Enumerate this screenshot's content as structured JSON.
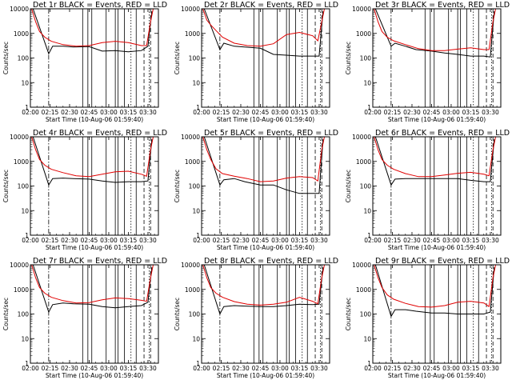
{
  "colors": {
    "events": "#000000",
    "lld": "#e00000",
    "background": "#ffffff"
  },
  "common": {
    "xlabel": "Start Time (10-Aug-06 01:59:40)",
    "ylabel": "Counts/sec",
    "xticks": [
      "02:00",
      "02:15",
      "02:30",
      "02:45",
      "03:00",
      "03:15",
      "03:30"
    ],
    "yticks": [
      "1",
      "10",
      "100",
      "1000",
      "10000"
    ]
  },
  "chart_data": [
    {
      "type": "line",
      "title": "Det 1r BLACK = Events, RED = LLD",
      "xlim": [
        "02:00",
        "03:38"
      ],
      "ylim": [
        1,
        10000
      ],
      "yscale": "log",
      "series": [
        {
          "name": "Events",
          "color": "#000000",
          "x": [
            "02:02",
            "02:14",
            "02:17",
            "02:25",
            "02:33",
            "02:45",
            "02:55",
            "03:05",
            "03:15",
            "03:25",
            "03:30",
            "03:33"
          ],
          "y": [
            10000,
            150,
            300,
            300,
            280,
            290,
            190,
            200,
            180,
            200,
            300,
            8000
          ]
        },
        {
          "name": "LLD",
          "color": "#e00000",
          "x": [
            "02:01",
            "02:04",
            "02:07",
            "02:11",
            "02:16",
            "02:25",
            "02:35",
            "02:45",
            "02:55",
            "03:05",
            "03:15",
            "03:25",
            "03:29",
            "03:32",
            "03:34"
          ],
          "y": [
            10000,
            3000,
            1200,
            700,
            480,
            350,
            300,
            320,
            420,
            480,
            420,
            320,
            320,
            3000,
            10000
          ]
        }
      ]
    },
    {
      "type": "line",
      "title": "Det 2r BLACK = Events, RED = LLD",
      "xlim": [
        "02:00",
        "03:38"
      ],
      "ylim": [
        1,
        10000
      ],
      "yscale": "log",
      "series": [
        {
          "name": "Events",
          "color": "#000000",
          "x": [
            "02:02",
            "02:14",
            "02:17",
            "02:25",
            "02:33",
            "02:45",
            "02:55",
            "03:05",
            "03:15",
            "03:25",
            "03:30",
            "03:33"
          ],
          "y": [
            10000,
            220,
            400,
            300,
            280,
            250,
            140,
            130,
            120,
            120,
            120,
            8000
          ]
        },
        {
          "name": "LLD",
          "color": "#e00000",
          "x": [
            "02:01",
            "02:04",
            "02:07",
            "02:11",
            "02:16",
            "02:25",
            "02:35",
            "02:45",
            "02:55",
            "03:05",
            "03:15",
            "03:25",
            "03:29",
            "03:32",
            "03:34"
          ],
          "y": [
            10000,
            3500,
            2200,
            1300,
            700,
            400,
            320,
            300,
            380,
            900,
            1100,
            800,
            500,
            3000,
            10000
          ]
        }
      ]
    },
    {
      "type": "line",
      "title": "Det 3r BLACK = Events, RED = LLD",
      "xlim": [
        "02:00",
        "03:38"
      ],
      "ylim": [
        1,
        10000
      ],
      "yscale": "log",
      "series": [
        {
          "name": "Events",
          "color": "#000000",
          "x": [
            "02:02",
            "02:14",
            "02:17",
            "02:25",
            "02:33",
            "02:45",
            "02:55",
            "03:05",
            "03:15",
            "03:25",
            "03:30",
            "03:33"
          ],
          "y": [
            10000,
            300,
            400,
            300,
            220,
            190,
            160,
            140,
            120,
            120,
            110,
            8000
          ]
        },
        {
          "name": "LLD",
          "color": "#e00000",
          "x": [
            "02:01",
            "02:04",
            "02:07",
            "02:11",
            "02:16",
            "02:25",
            "02:35",
            "02:45",
            "02:55",
            "03:05",
            "03:15",
            "03:25",
            "03:29",
            "03:32",
            "03:34"
          ],
          "y": [
            10000,
            3000,
            1200,
            700,
            500,
            350,
            240,
            200,
            200,
            230,
            260,
            220,
            220,
            3000,
            10000
          ]
        }
      ]
    },
    {
      "type": "line",
      "title": "Det 4r BLACK = Events, RED = LLD",
      "xlim": [
        "02:00",
        "03:38"
      ],
      "ylim": [
        1,
        10000
      ],
      "yscale": "log",
      "series": [
        {
          "name": "Events",
          "color": "#000000",
          "x": [
            "02:02",
            "02:14",
            "02:17",
            "02:25",
            "02:33",
            "02:45",
            "02:55",
            "03:05",
            "03:15",
            "03:25",
            "03:30",
            "03:33"
          ],
          "y": [
            10000,
            110,
            200,
            210,
            200,
            190,
            160,
            140,
            150,
            150,
            160,
            8000
          ]
        },
        {
          "name": "LLD",
          "color": "#e00000",
          "x": [
            "02:01",
            "02:04",
            "02:07",
            "02:11",
            "02:16",
            "02:25",
            "02:35",
            "02:45",
            "02:55",
            "03:05",
            "03:15",
            "03:25",
            "03:29",
            "03:32",
            "03:34"
          ],
          "y": [
            10000,
            3000,
            1200,
            700,
            480,
            350,
            260,
            240,
            300,
            380,
            400,
            300,
            250,
            3000,
            10000
          ]
        }
      ]
    },
    {
      "type": "line",
      "title": "Det 5r BLACK = Events, RED = LLD",
      "xlim": [
        "02:00",
        "03:38"
      ],
      "ylim": [
        1,
        10000
      ],
      "yscale": "log",
      "series": [
        {
          "name": "Events",
          "color": "#000000",
          "x": [
            "02:02",
            "02:14",
            "02:17",
            "02:25",
            "02:33",
            "02:45",
            "02:55",
            "03:05",
            "03:15",
            "03:25",
            "03:30",
            "03:33"
          ],
          "y": [
            10000,
            110,
            180,
            200,
            150,
            110,
            110,
            70,
            50,
            50,
            50,
            8000
          ]
        },
        {
          "name": "LLD",
          "color": "#e00000",
          "x": [
            "02:01",
            "02:04",
            "02:07",
            "02:11",
            "02:16",
            "02:25",
            "02:35",
            "02:45",
            "02:55",
            "03:05",
            "03:15",
            "03:25",
            "03:29",
            "03:32",
            "03:34"
          ],
          "y": [
            10000,
            3000,
            1200,
            500,
            320,
            250,
            200,
            150,
            160,
            210,
            240,
            220,
            160,
            3000,
            10000
          ]
        }
      ]
    },
    {
      "type": "line",
      "title": "Det 6r BLACK = Events, RED = LLD",
      "xlim": [
        "02:00",
        "03:38"
      ],
      "ylim": [
        1,
        10000
      ],
      "yscale": "log",
      "series": [
        {
          "name": "Events",
          "color": "#000000",
          "x": [
            "02:02",
            "02:14",
            "02:17",
            "02:25",
            "02:33",
            "02:45",
            "02:55",
            "03:05",
            "03:15",
            "03:25",
            "03:30",
            "03:33"
          ],
          "y": [
            10000,
            110,
            190,
            200,
            200,
            200,
            200,
            200,
            170,
            150,
            150,
            8000
          ]
        },
        {
          "name": "LLD",
          "color": "#e00000",
          "x": [
            "02:01",
            "02:04",
            "02:07",
            "02:11",
            "02:16",
            "02:25",
            "02:35",
            "02:45",
            "02:55",
            "03:05",
            "03:15",
            "03:25",
            "03:29",
            "03:32",
            "03:34"
          ],
          "y": [
            10000,
            3000,
            1200,
            700,
            480,
            320,
            240,
            240,
            280,
            330,
            360,
            300,
            260,
            3000,
            10000
          ]
        }
      ]
    },
    {
      "type": "line",
      "title": "Det 7r BLACK = Events, RED = LLD",
      "xlim": [
        "02:00",
        "03:38"
      ],
      "ylim": [
        1,
        10000
      ],
      "yscale": "log",
      "series": [
        {
          "name": "Events",
          "color": "#000000",
          "x": [
            "02:02",
            "02:14",
            "02:17",
            "02:25",
            "02:33",
            "02:45",
            "02:55",
            "03:05",
            "03:15",
            "03:25",
            "03:30",
            "03:33"
          ],
          "y": [
            10000,
            120,
            240,
            280,
            260,
            250,
            200,
            180,
            200,
            220,
            300,
            8000
          ]
        },
        {
          "name": "LLD",
          "color": "#e00000",
          "x": [
            "02:01",
            "02:04",
            "02:07",
            "02:11",
            "02:16",
            "02:25",
            "02:35",
            "02:45",
            "02:55",
            "03:05",
            "03:15",
            "03:25",
            "03:29",
            "03:32",
            "03:34"
          ],
          "y": [
            10000,
            3000,
            1200,
            700,
            480,
            350,
            280,
            290,
            380,
            450,
            420,
            360,
            330,
            3000,
            10000
          ]
        }
      ]
    },
    {
      "type": "line",
      "title": "Det 8r BLACK = Events, RED = LLD",
      "xlim": [
        "02:00",
        "03:38"
      ],
      "ylim": [
        1,
        10000
      ],
      "yscale": "log",
      "series": [
        {
          "name": "Events",
          "color": "#000000",
          "x": [
            "02:02",
            "02:14",
            "02:17",
            "02:25",
            "02:33",
            "02:45",
            "02:55",
            "03:05",
            "03:15",
            "03:25",
            "03:30",
            "03:33"
          ],
          "y": [
            10000,
            100,
            200,
            220,
            210,
            200,
            200,
            220,
            250,
            240,
            250,
            8000
          ]
        },
        {
          "name": "LLD",
          "color": "#e00000",
          "x": [
            "02:01",
            "02:04",
            "02:07",
            "02:11",
            "02:16",
            "02:25",
            "02:35",
            "02:45",
            "02:55",
            "03:05",
            "03:15",
            "03:25",
            "03:29",
            "03:32",
            "03:34"
          ],
          "y": [
            10000,
            3000,
            1200,
            700,
            480,
            320,
            250,
            230,
            250,
            300,
            480,
            330,
            260,
            3000,
            10000
          ]
        }
      ]
    },
    {
      "type": "line",
      "title": "Det 9r BLACK = Events, RED = LLD",
      "xlim": [
        "02:00",
        "03:38"
      ],
      "ylim": [
        1,
        10000
      ],
      "yscale": "log",
      "series": [
        {
          "name": "Events",
          "color": "#000000",
          "x": [
            "02:02",
            "02:14",
            "02:17",
            "02:25",
            "02:33",
            "02:45",
            "02:55",
            "03:05",
            "03:15",
            "03:25",
            "03:30",
            "03:33"
          ],
          "y": [
            10000,
            80,
            150,
            150,
            130,
            110,
            110,
            100,
            100,
            100,
            120,
            8000
          ]
        },
        {
          "name": "LLD",
          "color": "#e00000",
          "x": [
            "02:01",
            "02:04",
            "02:07",
            "02:11",
            "02:16",
            "02:25",
            "02:35",
            "02:45",
            "02:55",
            "03:05",
            "03:15",
            "03:25",
            "03:29",
            "03:32",
            "03:34"
          ],
          "y": [
            10000,
            3000,
            1200,
            600,
            400,
            270,
            200,
            190,
            220,
            300,
            330,
            280,
            200,
            3000,
            10000
          ]
        }
      ]
    }
  ],
  "markers": {
    "solid": [
      "02:40",
      "02:44",
      "02:47",
      "02:58",
      "03:05",
      "03:07",
      "03:12",
      "03:21"
    ],
    "dotted": [
      "03:17",
      "03:31"
    ],
    "dashed": [
      "03:27",
      "03:32"
    ],
    "dash_dot": [
      "02:14"
    ]
  }
}
